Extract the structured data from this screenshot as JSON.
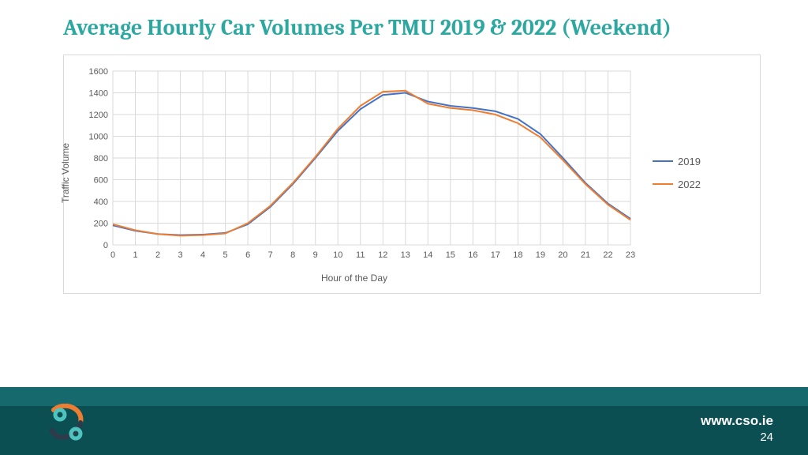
{
  "title": "Average Hourly Car Volumes Per TMU 2019 & 2022 (Weekend)",
  "footer": {
    "url": "www.cso.ie",
    "page": "24"
  },
  "chart": {
    "type": "line",
    "xlabel": "Hour of the Day",
    "ylabel": "Traffic Volume",
    "xlim": [
      0,
      23
    ],
    "ylim": [
      0,
      1600
    ],
    "ytick_step": 200,
    "xtick_step": 1,
    "x": [
      0,
      1,
      2,
      3,
      4,
      5,
      6,
      7,
      8,
      9,
      10,
      11,
      12,
      13,
      14,
      15,
      16,
      17,
      18,
      19,
      20,
      21,
      22,
      23
    ],
    "background_color": "#ffffff",
    "grid_color": "#d9d9d9",
    "axis_text_color": "#595959",
    "line_width": 2,
    "series": [
      {
        "name": "2019",
        "color": "#4472c4",
        "y": [
          180,
          130,
          100,
          90,
          95,
          110,
          190,
          350,
          560,
          800,
          1050,
          1250,
          1380,
          1400,
          1320,
          1280,
          1260,
          1230,
          1160,
          1020,
          800,
          570,
          380,
          240
        ]
      },
      {
        "name": "2022",
        "color": "#ed7d31",
        "y": [
          190,
          135,
          100,
          85,
          90,
          105,
          200,
          360,
          570,
          810,
          1070,
          1280,
          1410,
          1420,
          1300,
          1260,
          1240,
          1200,
          1120,
          990,
          780,
          560,
          370,
          230
        ]
      }
    ]
  },
  "brand_colors": {
    "footer_top": "#166a6e",
    "footer_bottom": "#0b4f53",
    "title": "#2ca8a1",
    "logo_accent": "#ed7d31",
    "logo_dark": "#2f3a4a",
    "logo_teal": "#4fc4bf"
  }
}
